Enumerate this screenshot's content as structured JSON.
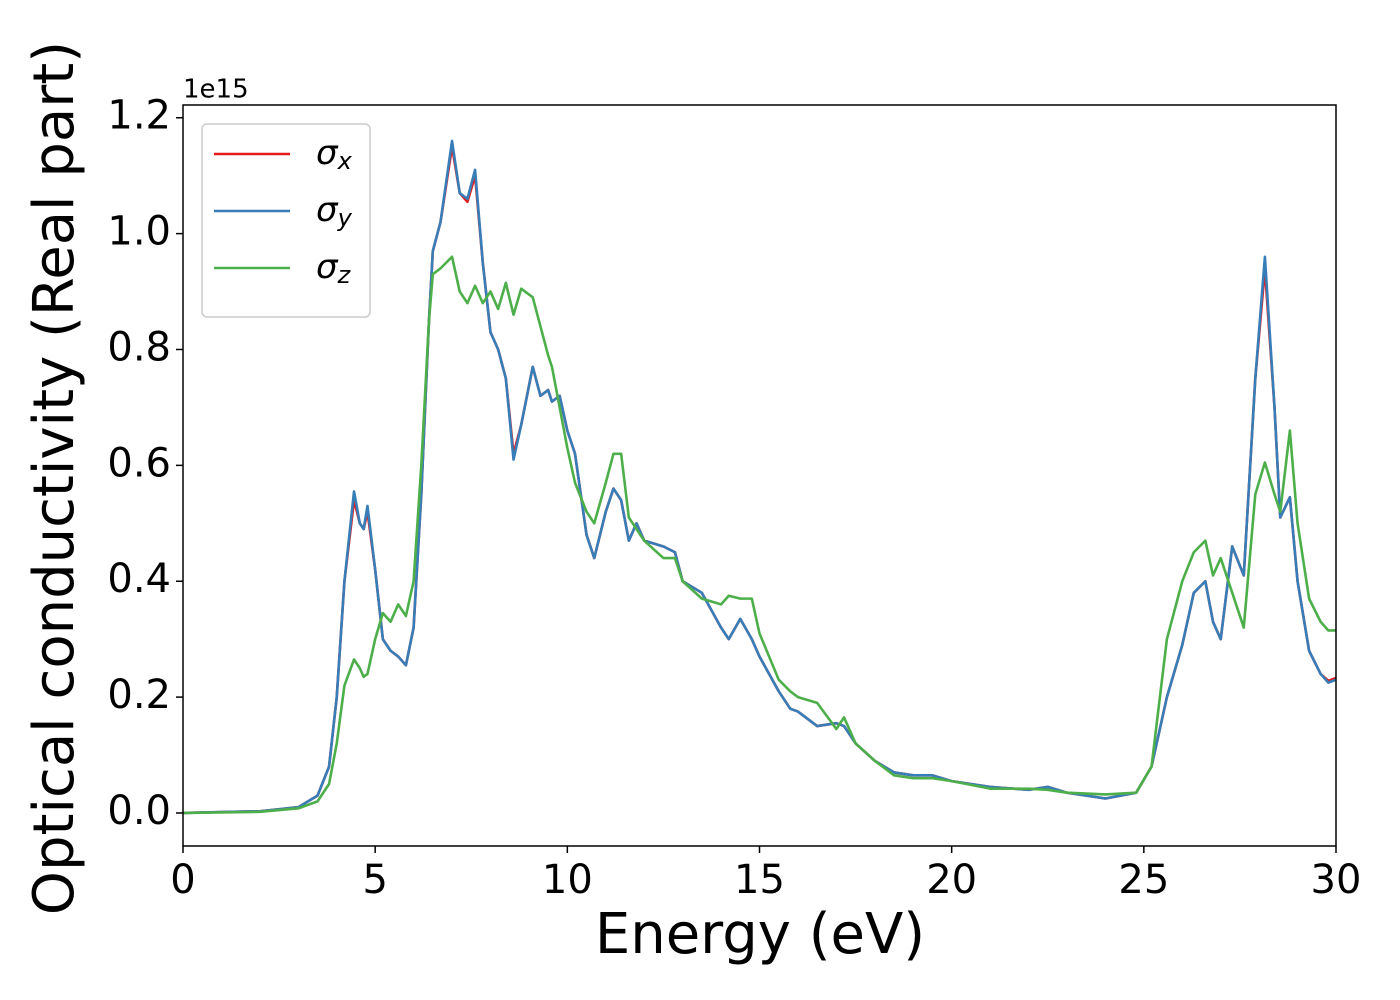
{
  "chart_data": {
    "type": "line",
    "x_label": "Energy (eV)",
    "y_label": "Optical conductivity (Real part)",
    "y_offset_label": "1e15",
    "legend": "upper left",
    "xlim": [
      0,
      30
    ],
    "ylim": [
      -0.057,
      1.222
    ],
    "xticks": [
      0,
      5,
      10,
      15,
      20,
      25,
      30
    ],
    "yticks": [
      {
        "value": 0,
        "label": "0.0"
      },
      {
        "value": 0.2,
        "label": "0.2"
      },
      {
        "value": 0.4,
        "label": "0.4"
      },
      {
        "value": 0.6,
        "label": "0.6"
      },
      {
        "value": 0.8,
        "label": "0.8"
      },
      {
        "value": 1.0,
        "label": "1.0"
      },
      {
        "value": 1.2,
        "label": "1.2"
      }
    ],
    "x": [
      0,
      2,
      3,
      3.5,
      3.8,
      4.0,
      4.2,
      4.45,
      4.6,
      4.7,
      4.8,
      5.0,
      5.2,
      5.4,
      5.6,
      5.8,
      6.0,
      6.2,
      6.4,
      6.5,
      6.7,
      7.0,
      7.2,
      7.4,
      7.6,
      7.8,
      8.0,
      8.2,
      8.4,
      8.6,
      8.8,
      9.1,
      9.3,
      9.5,
      9.6,
      9.8,
      10.0,
      10.2,
      10.5,
      10.7,
      11.0,
      11.2,
      11.4,
      11.6,
      11.8,
      12.0,
      12.5,
      12.8,
      13.0,
      13.5,
      14.0,
      14.2,
      14.5,
      14.8,
      15.0,
      15.5,
      15.8,
      16.0,
      16.5,
      17.0,
      17.2,
      17.5,
      18.0,
      18.5,
      19.0,
      19.5,
      20,
      21,
      22,
      22.5,
      23,
      24,
      24.8,
      25.2,
      25.6,
      26.0,
      26.3,
      26.6,
      26.8,
      27.0,
      27.3,
      27.6,
      27.9,
      28.15,
      28.4,
      28.55,
      28.8,
      29.0,
      29.3,
      29.6,
      29.8,
      30
    ],
    "series": [
      {
        "name": "σx",
        "color": "#e41a1c",
        "values": [
          0,
          0.003,
          0.01,
          0.03,
          0.08,
          0.2,
          0.4,
          0.54,
          0.5,
          0.49,
          0.52,
          0.42,
          0.3,
          0.28,
          0.27,
          0.255,
          0.32,
          0.55,
          0.85,
          0.97,
          1.02,
          1.15,
          1.07,
          1.055,
          1.1,
          0.95,
          0.83,
          0.8,
          0.75,
          0.62,
          0.67,
          0.77,
          0.72,
          0.73,
          0.71,
          0.72,
          0.66,
          0.62,
          0.48,
          0.44,
          0.52,
          0.56,
          0.54,
          0.47,
          0.5,
          0.47,
          0.46,
          0.45,
          0.4,
          0.38,
          0.32,
          0.3,
          0.335,
          0.3,
          0.27,
          0.21,
          0.18,
          0.175,
          0.15,
          0.155,
          0.15,
          0.12,
          0.09,
          0.07,
          0.065,
          0.065,
          0.055,
          0.045,
          0.04,
          0.045,
          0.035,
          0.025,
          0.035,
          0.08,
          0.2,
          0.29,
          0.38,
          0.4,
          0.33,
          0.3,
          0.46,
          0.41,
          0.75,
          0.94,
          0.7,
          0.51,
          0.545,
          0.4,
          0.28,
          0.24,
          0.228,
          0.233
        ]
      },
      {
        "name": "σy",
        "color": "#377eb8",
        "values": [
          0,
          0.003,
          0.01,
          0.03,
          0.08,
          0.2,
          0.4,
          0.555,
          0.5,
          0.49,
          0.53,
          0.42,
          0.3,
          0.28,
          0.27,
          0.255,
          0.32,
          0.55,
          0.85,
          0.97,
          1.02,
          1.16,
          1.07,
          1.06,
          1.11,
          0.95,
          0.83,
          0.8,
          0.75,
          0.61,
          0.67,
          0.77,
          0.72,
          0.73,
          0.71,
          0.72,
          0.66,
          0.62,
          0.48,
          0.44,
          0.52,
          0.56,
          0.54,
          0.47,
          0.5,
          0.47,
          0.46,
          0.45,
          0.4,
          0.38,
          0.32,
          0.3,
          0.335,
          0.3,
          0.27,
          0.21,
          0.18,
          0.175,
          0.15,
          0.155,
          0.15,
          0.12,
          0.09,
          0.07,
          0.065,
          0.065,
          0.055,
          0.045,
          0.04,
          0.045,
          0.035,
          0.025,
          0.035,
          0.08,
          0.2,
          0.29,
          0.38,
          0.4,
          0.33,
          0.3,
          0.46,
          0.41,
          0.75,
          0.96,
          0.7,
          0.51,
          0.545,
          0.4,
          0.28,
          0.24,
          0.225,
          0.23
        ]
      },
      {
        "name": "σz",
        "color": "#4daf4a",
        "values": [
          0,
          0.002,
          0.008,
          0.02,
          0.05,
          0.12,
          0.22,
          0.265,
          0.25,
          0.235,
          0.24,
          0.3,
          0.345,
          0.33,
          0.36,
          0.34,
          0.4,
          0.6,
          0.85,
          0.93,
          0.94,
          0.96,
          0.9,
          0.88,
          0.91,
          0.88,
          0.9,
          0.87,
          0.915,
          0.86,
          0.905,
          0.89,
          0.84,
          0.79,
          0.77,
          0.7,
          0.63,
          0.57,
          0.52,
          0.5,
          0.57,
          0.62,
          0.62,
          0.51,
          0.49,
          0.47,
          0.44,
          0.44,
          0.4,
          0.37,
          0.36,
          0.375,
          0.37,
          0.37,
          0.31,
          0.23,
          0.21,
          0.2,
          0.19,
          0.145,
          0.165,
          0.12,
          0.09,
          0.065,
          0.06,
          0.06,
          0.055,
          0.042,
          0.042,
          0.04,
          0.035,
          0.032,
          0.035,
          0.08,
          0.3,
          0.4,
          0.45,
          0.47,
          0.41,
          0.44,
          0.38,
          0.32,
          0.55,
          0.605,
          0.55,
          0.52,
          0.66,
          0.5,
          0.37,
          0.33,
          0.315,
          0.315
        ]
      }
    ]
  }
}
